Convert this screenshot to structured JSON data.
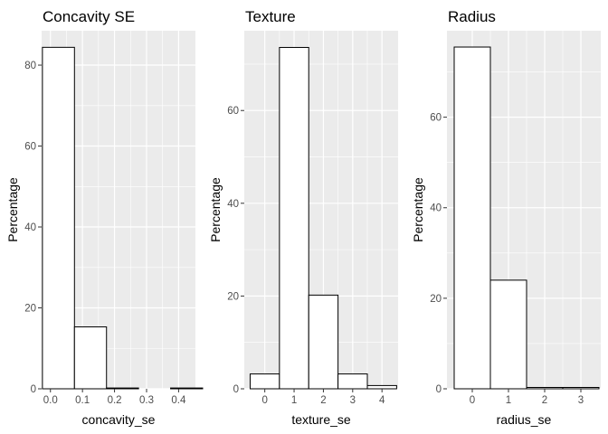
{
  "chart_data": [
    {
      "type": "bar",
      "title": "Concavity SE",
      "xlabel": "concavity_se",
      "ylabel": "Percentage",
      "xlim": [
        -0.0275,
        0.4525
      ],
      "ylim": [
        0,
        88.5
      ],
      "xticks": [
        0.0,
        0.1,
        0.2,
        0.3,
        0.4
      ],
      "xtick_labels": [
        "0.0",
        "0.1",
        "0.2",
        "0.3",
        "0.4"
      ],
      "yticks": [
        0,
        20,
        40,
        60,
        80
      ],
      "yminor": [
        10,
        30,
        50,
        70
      ],
      "bins": [
        {
          "x0": -0.025,
          "x1": 0.075,
          "value": 84.4
        },
        {
          "x0": 0.075,
          "x1": 0.175,
          "value": 15.3
        },
        {
          "x0": 0.175,
          "x1": 0.275,
          "value": 0.2
        },
        {
          "x0": 0.275,
          "x1": 0.375,
          "value": 0
        },
        {
          "x0": 0.375,
          "x1": 0.475,
          "value": 0.2
        }
      ]
    },
    {
      "type": "bar",
      "title": "Texture",
      "xlabel": "texture_se",
      "ylabel": "Percentage",
      "xlim": [
        -0.7,
        4.55
      ],
      "ylim": [
        0,
        77.2
      ],
      "xticks": [
        0,
        1,
        2,
        3,
        4
      ],
      "xtick_labels": [
        "0",
        "1",
        "2",
        "3",
        "4"
      ],
      "yticks": [
        0,
        20,
        40,
        60
      ],
      "yminor": [
        10,
        30,
        50,
        70
      ],
      "bins": [
        {
          "x0": -0.5,
          "x1": 0.5,
          "value": 3.2
        },
        {
          "x0": 0.5,
          "x1": 1.5,
          "value": 73.6
        },
        {
          "x0": 1.5,
          "x1": 2.5,
          "value": 20.2
        },
        {
          "x0": 2.5,
          "x1": 3.5,
          "value": 3.2
        },
        {
          "x0": 3.5,
          "x1": 4.5,
          "value": 0.7
        }
      ]
    },
    {
      "type": "bar",
      "title": "Radius",
      "xlabel": "radius_se",
      "ylabel": "Percentage",
      "xlim": [
        -0.7,
        3.55
      ],
      "ylim": [
        0,
        79.1
      ],
      "xticks": [
        0,
        1,
        2,
        3
      ],
      "xtick_labels": [
        "0",
        "1",
        "2",
        "3"
      ],
      "yticks": [
        0,
        20,
        40,
        60
      ],
      "yminor": [
        10,
        30,
        50,
        70
      ],
      "bins": [
        {
          "x0": -0.5,
          "x1": 0.5,
          "value": 75.5
        },
        {
          "x0": 0.5,
          "x1": 1.5,
          "value": 24.0
        },
        {
          "x0": 1.5,
          "x1": 2.5,
          "value": 0.3
        },
        {
          "x0": 2.5,
          "x1": 3.5,
          "value": 0.3
        }
      ]
    }
  ]
}
